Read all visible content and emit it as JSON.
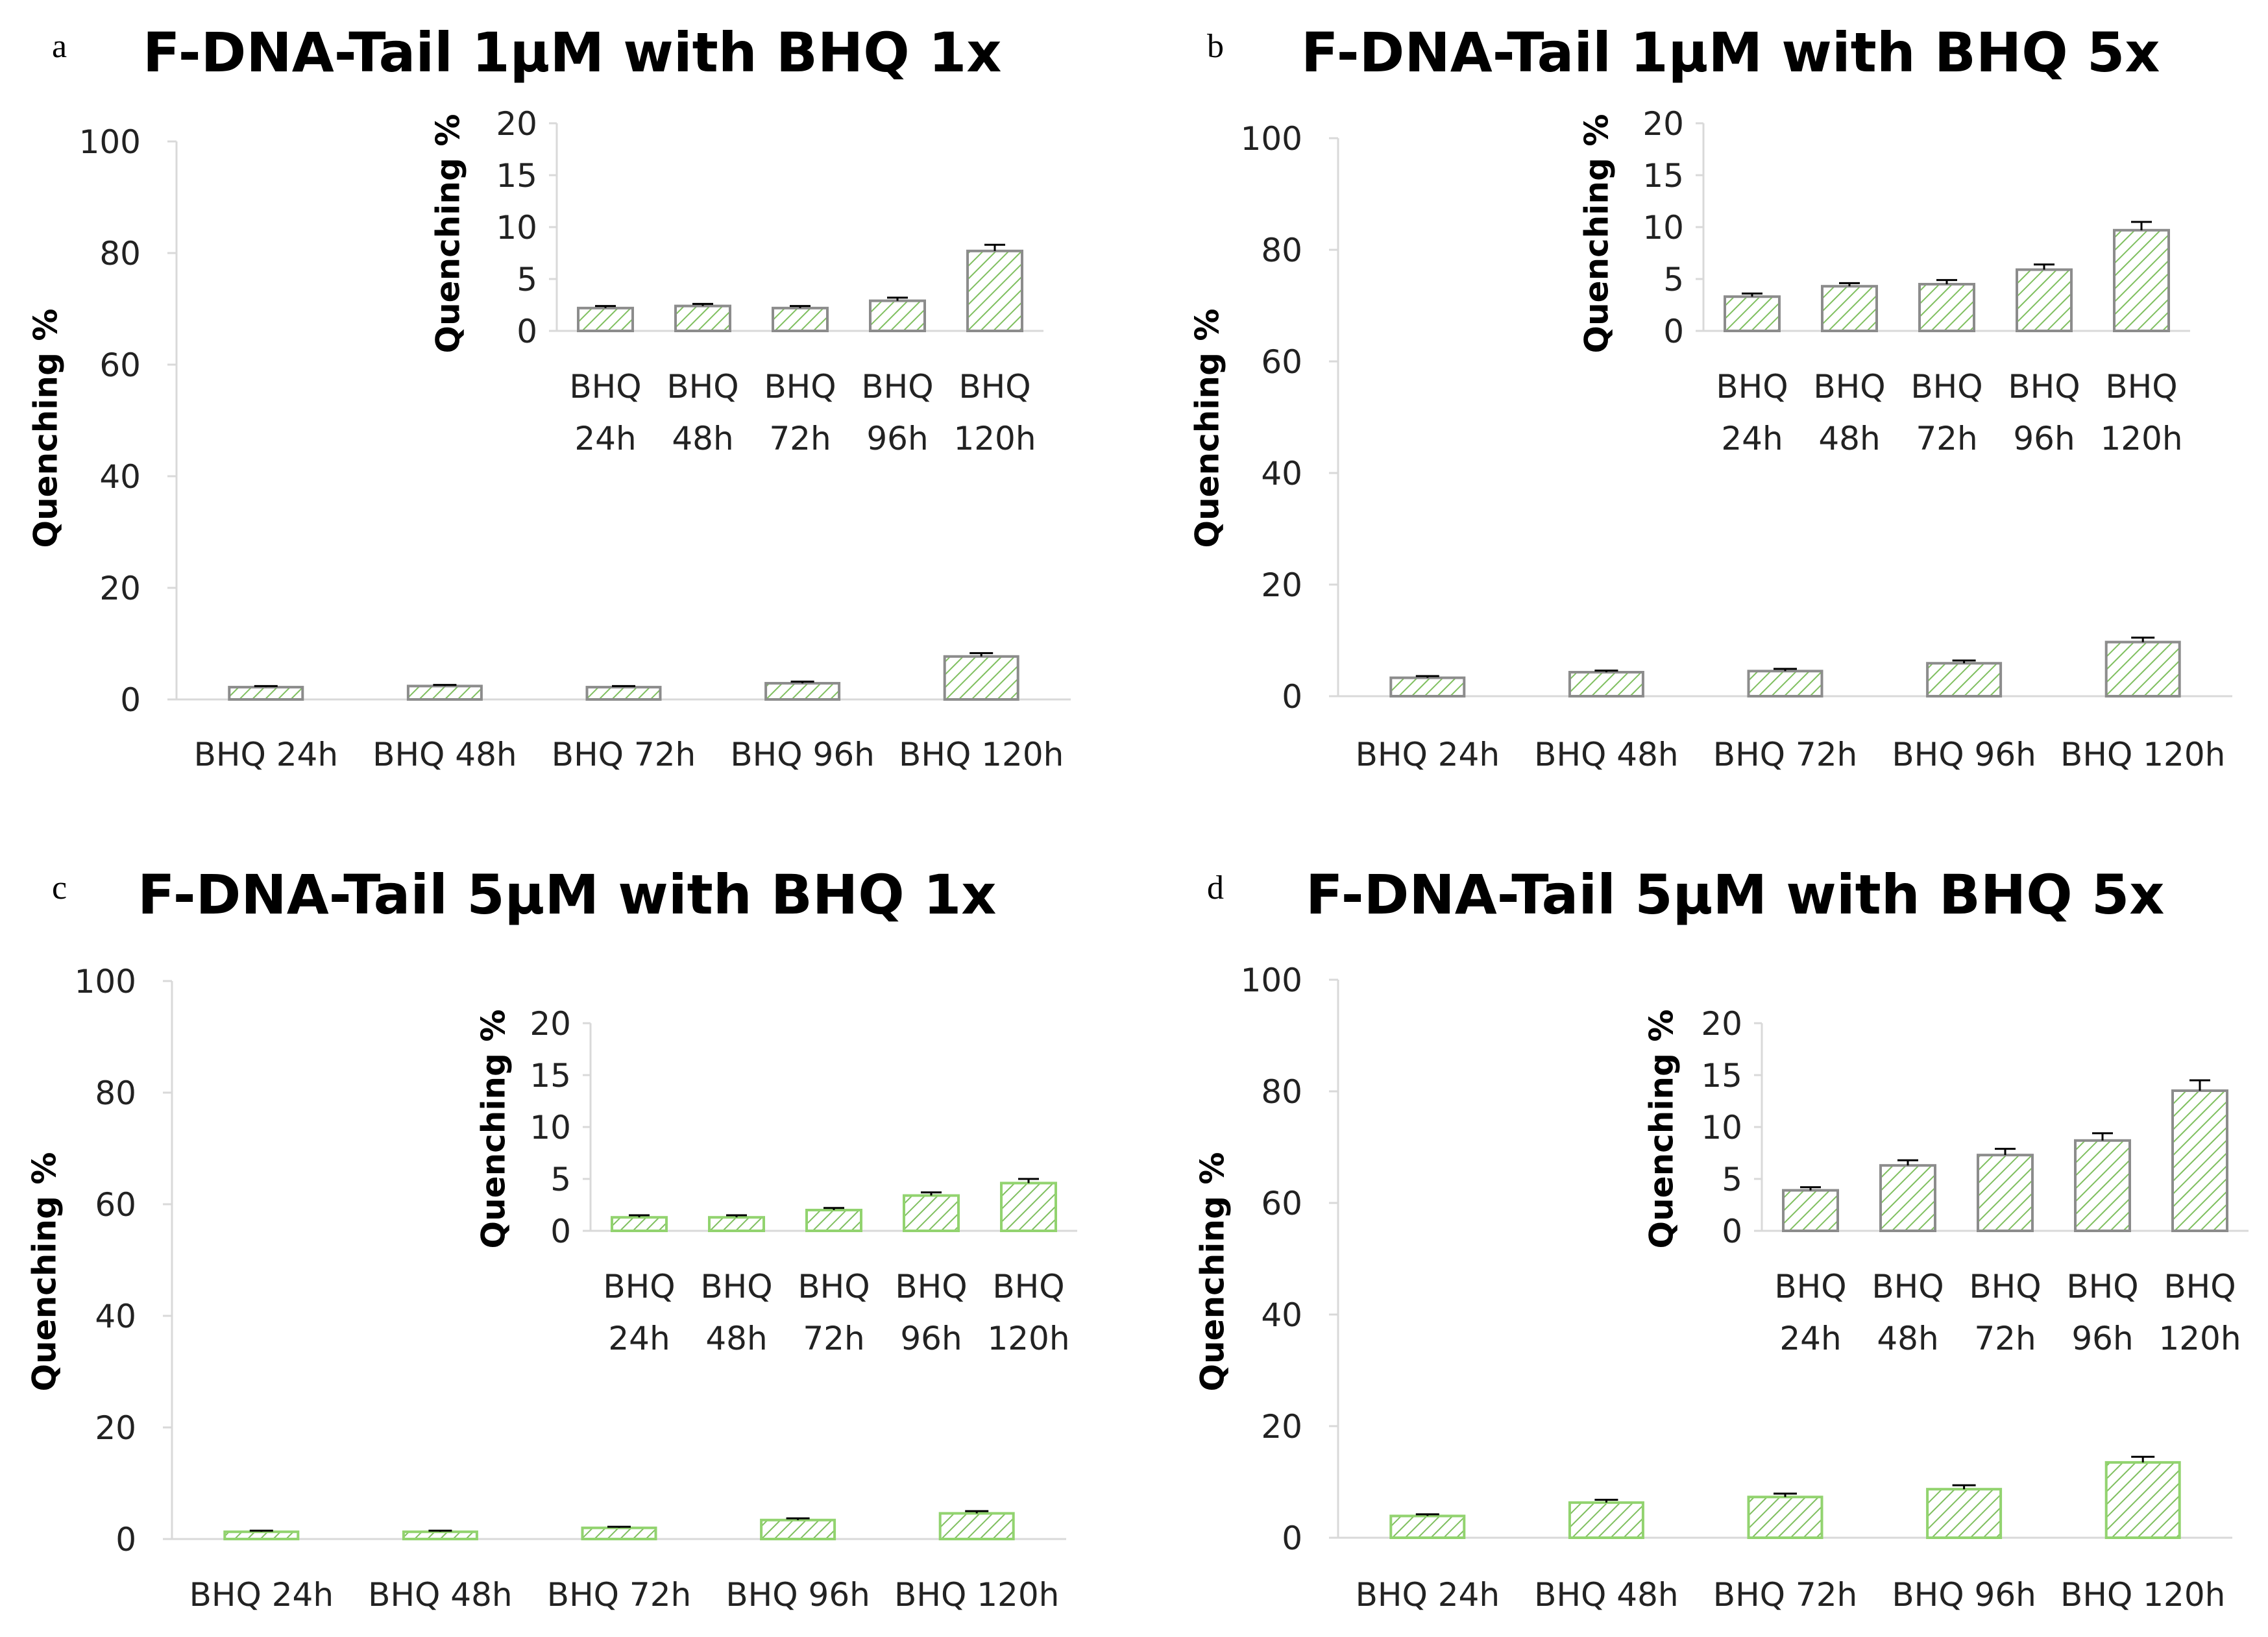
{
  "colors": {
    "bar_outline_dark": "#8c8c8c",
    "bar_outline_green": "#92d36f",
    "hatch": "#7fbf5f",
    "axis": "#d9d9d9"
  },
  "categories": [
    "BHQ 24h",
    "BHQ 48h",
    "BHQ 72h",
    "BHQ 96h",
    "BHQ 120h"
  ],
  "inset_categories": [
    [
      "BHQ",
      "24h"
    ],
    [
      "BHQ",
      "48h"
    ],
    [
      "BHQ",
      "72h"
    ],
    [
      "BHQ",
      "96h"
    ],
    [
      "BHQ",
      "120h"
    ]
  ],
  "chart_data": [
    {
      "panel": "a",
      "type": "bar",
      "title": "F-DNA-Tail 1µM  with BHQ 1x",
      "ylabel": "Quenching %",
      "xlabel": "",
      "categories": [
        "BHQ 24h",
        "BHQ 48h",
        "BHQ 72h",
        "BHQ 96h",
        "BHQ 120h"
      ],
      "values": [
        2.2,
        2.4,
        2.2,
        2.9,
        7.7
      ],
      "errors": [
        0.2,
        0.2,
        0.2,
        0.3,
        0.6
      ],
      "ylim": [
        0,
        100
      ],
      "yticks": [
        0,
        20,
        40,
        60,
        80,
        100
      ],
      "outline": "dark",
      "inset": {
        "ylim": [
          0,
          20
        ],
        "yticks": [
          0,
          5,
          10,
          15,
          20
        ],
        "ylabel": "Quenching %"
      }
    },
    {
      "panel": "b",
      "type": "bar",
      "title": "F-DNA-Tail 1µM  with BHQ 5x",
      "ylabel": "Quenching %",
      "xlabel": "",
      "categories": [
        "BHQ 24h",
        "BHQ 48h",
        "BHQ 72h",
        "BHQ 96h",
        "BHQ 120h"
      ],
      "values": [
        3.3,
        4.3,
        4.5,
        5.9,
        9.7
      ],
      "errors": [
        0.3,
        0.3,
        0.4,
        0.5,
        0.8
      ],
      "ylim": [
        0,
        100
      ],
      "yticks": [
        0,
        20,
        40,
        60,
        80,
        100
      ],
      "outline": "dark",
      "inset": {
        "ylim": [
          0,
          20
        ],
        "yticks": [
          0,
          5,
          10,
          15,
          20
        ],
        "ylabel": "Quenching %"
      }
    },
    {
      "panel": "c",
      "type": "bar",
      "title": "F-DNA-Tail 5µM  with BHQ 1x",
      "ylabel": "Quenching %",
      "xlabel": "",
      "categories": [
        "BHQ 24h",
        "BHQ 48h",
        "BHQ 72h",
        "BHQ 96h",
        "BHQ 120h"
      ],
      "values": [
        1.3,
        1.3,
        2.0,
        3.4,
        4.6
      ],
      "errors": [
        0.2,
        0.2,
        0.2,
        0.3,
        0.4
      ],
      "ylim": [
        0,
        100
      ],
      "yticks": [
        0,
        20,
        40,
        60,
        80,
        100
      ],
      "outline": "green",
      "inset": {
        "ylim": [
          0,
          20
        ],
        "yticks": [
          0,
          5,
          10,
          15,
          20
        ],
        "ylabel": "Quenching %"
      }
    },
    {
      "panel": "d",
      "type": "bar",
      "title": "F-DNA-Tail 5µM  with BHQ 5x",
      "ylabel": "Quenching %",
      "xlabel": "",
      "categories": [
        "BHQ 24h",
        "BHQ 48h",
        "BHQ 72h",
        "BHQ 96h",
        "BHQ 120h"
      ],
      "values": [
        3.9,
        6.3,
        7.3,
        8.7,
        13.5
      ],
      "errors": [
        0.3,
        0.5,
        0.6,
        0.7,
        1.0
      ],
      "ylim": [
        0,
        100
      ],
      "yticks": [
        0,
        20,
        40,
        60,
        80,
        100
      ],
      "outline": "mixed",
      "inset": {
        "ylim": [
          0,
          20
        ],
        "yticks": [
          0,
          5,
          10,
          15,
          20
        ],
        "ylabel": "Quenching %"
      }
    }
  ]
}
